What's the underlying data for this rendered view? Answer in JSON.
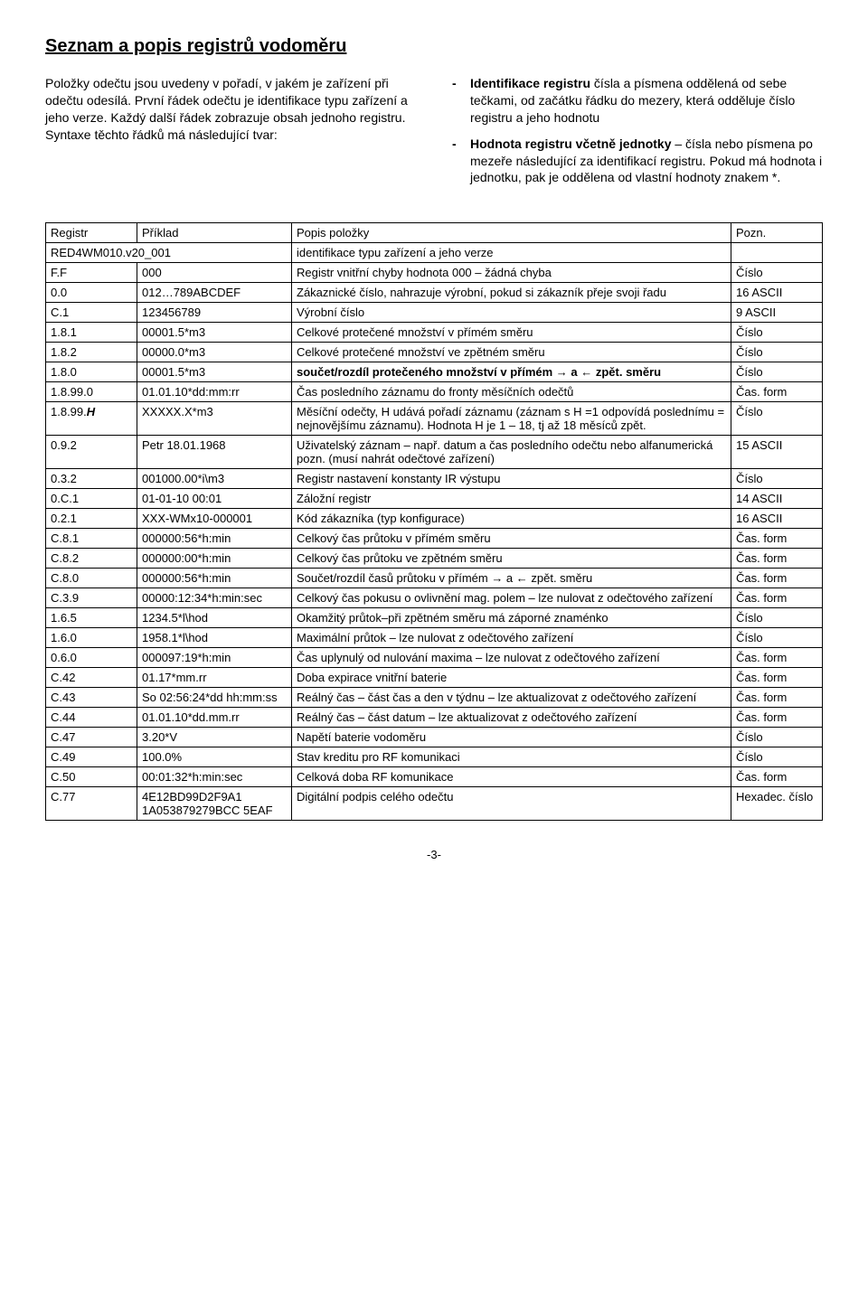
{
  "title": "Seznam a popis registrů vodoměru",
  "intro_left": "Položky odečtu jsou uvedeny v pořadí, v jakém je zařízení při odečtu odesílá. První řádek odečtu je identifikace typu zařízení a jeho verze. Každý další řádek zobrazuje obsah jednoho registru. Syntaxe těchto řádků má následující tvar:",
  "intro_bullets": [
    {
      "bold": "Identifikace registru",
      "rest": " čísla a písmena oddělená od sebe tečkami, od začátku řádku do mezery, která odděluje číslo registru a jeho hodnotu"
    },
    {
      "bold": "Hodnota registru včetně jednotky",
      "rest": " – čísla nebo písmena po mezeře následující za identifikací registru. Pokud má hodnota i jednotku, pak  je oddělena od vlastní hodnoty znakem *."
    }
  ],
  "headers": [
    "Registr",
    "Příklad",
    "Popis položky",
    "Pozn."
  ],
  "rows": [
    {
      "r": "RED4WM010.v20_001",
      "e": "",
      "d": "identifikace typu zařízení a jeho verze",
      "n": "",
      "span": true
    },
    {
      "r": "F.F",
      "e": "000",
      "d": "Registr vnitřní chyby hodnota 000 – žádná chyba",
      "n": "Číslo"
    },
    {
      "r": "0.0",
      "e": "012…789ABCDEF",
      "d": "Zákaznické číslo, nahrazuje výrobní, pokud si zákazník přeje svoji řadu",
      "n": "16 ASCII"
    },
    {
      "r": "C.1",
      "e": "123456789",
      "d": "Výrobní číslo",
      "n": "9 ASCII"
    },
    {
      "r": "1.8.1",
      "e": "00001.5*m3",
      "d": "Celkové protečené množství  v přímém směru",
      "n": "Číslo"
    },
    {
      "r": "1.8.2",
      "e": "00000.0*m3",
      "d": "Celkové protečené množství ve zpětném směru",
      "n": "Číslo"
    },
    {
      "r": "1.8.0",
      "e": "00001.5*m3",
      "d": "součet/rozdíl protečeného množství v přímém → a ← zpět. směru",
      "n": "Číslo",
      "boldDesc": true
    },
    {
      "r": "1.8.99.0",
      "e": "01.01.10*dd:mm:rr",
      "d": "Čas posledního záznamu do fronty měsíčních odečtů",
      "n": "Čas. form"
    },
    {
      "r": "1.8.99.H",
      "e": "XXXXX.X*m3",
      "d": "Měsíční odečty, H udává pořadí záznamu (záznam s H =1 odpovídá poslednímu = nejnovějšímu záznamu). Hodnota  H je 1 – 18, tj až 18 měsíců  zpět.",
      "n": "Číslo",
      "italicR": true
    },
    {
      "r": "0.9.2",
      "e": "Petr 18.01.1968",
      "d": "Uživatelský záznam – např. datum a čas posledního odečtu nebo alfanumerická  pozn. (musí nahrát odečtové  zařízení)",
      "n": "15 ASCII"
    },
    {
      "r": "0.3.2",
      "e": "001000.00*i\\m3",
      "d": "Registr nastavení konstanty IR výstupu",
      "n": "Číslo"
    },
    {
      "r": "0.C.1",
      "e": "01-01-10 00:01",
      "d": "Záložní registr",
      "n": "14 ASCII"
    },
    {
      "r": "0.2.1",
      "e": "XXX-WMx10-000001",
      "d": "Kód zákazníka (typ konfigurace)",
      "n": "16 ASCII"
    },
    {
      "r": "C.8.1",
      "e": "000000:56*h:min",
      "d": "Celkový čas průtoku v přímém směru",
      "n": "Čas. form"
    },
    {
      "r": "C.8.2",
      "e": "000000:00*h:min",
      "d": "Celkový čas průtoku ve zpětném směru",
      "n": "Čas. form"
    },
    {
      "r": "C.8.0",
      "e": "000000:56*h:min",
      "d": "Součet/rozdíl časů průtoku v přímém → a ← zpět. směru",
      "n": "Čas. form"
    },
    {
      "r": "C.3.9",
      "e": "00000:12:34*h:min:sec",
      "d": "Celkový čas pokusu o ovlivnění mag. polem – lze nulovat z odečtového zařízení",
      "n": "Čas. form"
    },
    {
      "r": "1.6.5",
      "e": "1234.5*l\\hod",
      "d": "Okamžitý průtok–při zpětném směru má  záporné znaménko",
      "n": "Číslo"
    },
    {
      "r": "1.6.0",
      "e": "1958.1*l\\hod",
      "d": "Maximální průtok –  lze nulovat z odečtového zařízení",
      "n": "Číslo"
    },
    {
      "r": "0.6.0",
      "e": "000097:19*h:min",
      "d": "Čas uplynulý od nulování maxima –  lze nulovat z odečtového zařízení",
      "n": "Čas. form"
    },
    {
      "r": "C.42",
      "e": "01.17*mm.rr",
      "d": "Doba expirace vnitřní baterie",
      "n": "Čas. form"
    },
    {
      "r": "C.43",
      "e": "So 02:56:24*dd hh:mm:ss",
      "d": "Reálný čas – část čas a den v týdnu –  lze aktualizovat z odečtového zařízení",
      "n": "Čas. form"
    },
    {
      "r": "C.44",
      "e": "01.01.10*dd.mm.rr",
      "d": "Reálný čas – část datum –  lze aktualizovat z odečtového zařízení",
      "n": "Čas. form"
    },
    {
      "r": "C.47",
      "e": "3.20*V",
      "d": "Napětí  baterie vodoměru",
      "n": "Číslo"
    },
    {
      "r": "C.49",
      "e": "100.0%",
      "d": "Stav kreditu pro RF komunikaci",
      "n": "Číslo"
    },
    {
      "r": "C.50",
      "e": "00:01:32*h:min:sec",
      "d": "Celková doba RF komunikace",
      "n": "Čas. form"
    },
    {
      "r": "C.77",
      "e": "4E12BD99D2F9A1 1A053879279BCC 5EAF",
      "d": "Digitální podpis celého odečtu",
      "n": "Hexadec. číslo"
    }
  ],
  "footer": "-3-",
  "col_widths": [
    "90px",
    "160px",
    "auto",
    "90px"
  ]
}
